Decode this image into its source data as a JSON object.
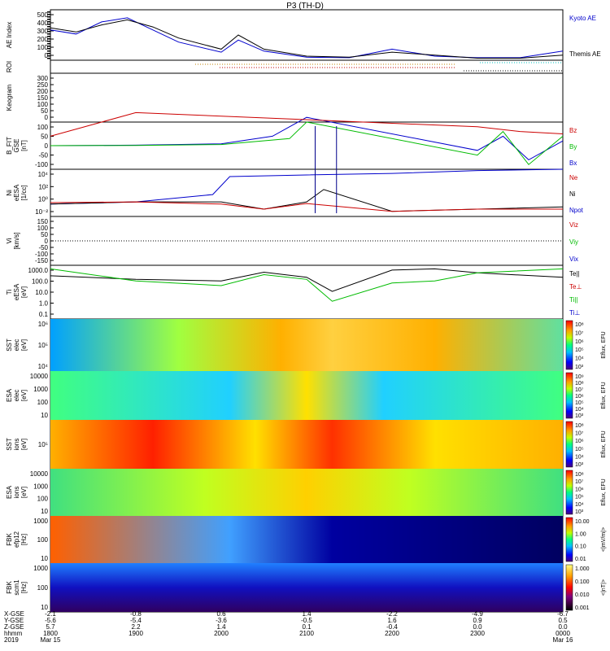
{
  "title": "P3 (TH-D)",
  "panels": [
    {
      "id": "ae",
      "ylabel": [
        "AE Index"
      ],
      "ticks": [
        "500",
        "400",
        "300",
        "200",
        "100",
        "0"
      ],
      "legend": [
        {
          "text": "Kyoto AE",
          "color": "#0000cc"
        },
        {
          "text": "Themis AE",
          "color": "#000000"
        }
      ]
    },
    {
      "id": "roi",
      "ylabel": [
        "ROI"
      ],
      "ticks": [],
      "legend": []
    },
    {
      "id": "keogram",
      "ylabel": [
        "Keogram"
      ],
      "ticks": [
        "300",
        "250",
        "200",
        "150",
        "100",
        "50",
        "0"
      ],
      "legend": []
    },
    {
      "id": "bfit",
      "ylabel": [
        "B_FIT",
        "GSE",
        "[nT]"
      ],
      "ticks": [
        "100",
        "50",
        "0",
        "-50",
        "-100"
      ],
      "legend": [
        {
          "text": "Bz",
          "color": "#cc0000"
        },
        {
          "text": "By",
          "color": "#00bb00"
        },
        {
          "text": "Bx",
          "color": "#0000cc"
        }
      ]
    },
    {
      "id": "ni",
      "ylabel": [
        "Ni",
        "eESA",
        "[1/cc]"
      ],
      "ticks": [
        "10⁴",
        "10²",
        "10⁰",
        "10⁻²"
      ],
      "legend": [
        {
          "text": "Ne",
          "color": "#cc0000"
        },
        {
          "text": "Ni",
          "color": "#000000"
        },
        {
          "text": "Npot",
          "color": "#0000cc"
        }
      ]
    },
    {
      "id": "vi",
      "ylabel": [
        "Vi",
        "[km/s]"
      ],
      "ticks": [
        "150",
        "100",
        "50",
        "0",
        "-50",
        "-100",
        "-150"
      ],
      "legend": [
        {
          "text": "Viz",
          "color": "#cc0000"
        },
        {
          "text": "Viy",
          "color": "#00bb00"
        },
        {
          "text": "Vix",
          "color": "#0000cc"
        }
      ]
    },
    {
      "id": "t",
      "ylabel": [
        "Ti",
        "eESA",
        "[eV]"
      ],
      "ticks": [
        "1000.0",
        "100.0",
        "10.0",
        "1.0",
        "0.1"
      ],
      "legend": [
        {
          "text": "Te||",
          "color": "#000000"
        },
        {
          "text": "Te⊥",
          "color": "#cc0000"
        },
        {
          "text": "Ti||",
          "color": "#00bb00"
        },
        {
          "text": "Ti⊥",
          "color": "#0000cc"
        }
      ]
    },
    {
      "id": "sst_e",
      "ylabel": [
        "SST",
        "elec",
        "[eV]"
      ],
      "ticks": [
        "10⁶",
        "10⁵",
        "10⁴"
      ],
      "cbar": {
        "labels": [
          "10⁸",
          "10⁷",
          "10⁶",
          "10⁵",
          "10⁴",
          "10³"
        ],
        "title": "Eflux, EFU"
      }
    },
    {
      "id": "esa_e",
      "ylabel": [
        "ESA",
        "elec",
        "[eV]"
      ],
      "ticks": [
        "10000",
        "1000",
        "100",
        "10"
      ],
      "cbar": {
        "labels": [
          "10⁹",
          "10⁸",
          "10⁷",
          "10⁶",
          "10⁵",
          "10⁴",
          "10³"
        ],
        "title": "Eflux, EFU"
      }
    },
    {
      "id": "sst_i",
      "ylabel": [
        "SST",
        "ions",
        "[eV]"
      ],
      "ticks": [
        "10⁵"
      ],
      "cbar": {
        "labels": [
          "10⁸",
          "10⁷",
          "10⁶",
          "10⁵",
          "10⁴",
          "10³"
        ],
        "title": "Eflux, EFU"
      }
    },
    {
      "id": "esa_i",
      "ylabel": [
        "ESA",
        "ions",
        "[eV]"
      ],
      "ticks": [
        "10000",
        "1000",
        "100",
        "10"
      ],
      "cbar": {
        "labels": [
          "10⁸",
          "10⁷",
          "10⁶",
          "10⁵",
          "10⁴",
          "10³"
        ],
        "title": "Eflux, EFU"
      }
    },
    {
      "id": "fbk_e",
      "ylabel": [
        "FBK",
        "efp12",
        "[Hz]"
      ],
      "ticks": [
        "1000",
        "100",
        "10"
      ],
      "cbar": {
        "labels": [
          "10.00",
          "1.00",
          "0.10",
          "0.01"
        ],
        "title": "<|mV/m|>"
      }
    },
    {
      "id": "fbk_b",
      "ylabel": [
        "FBK",
        "scm1",
        "[Hz]"
      ],
      "ticks": [
        "1000",
        "100",
        "10"
      ],
      "cbar": {
        "labels": [
          "1.000",
          "0.100",
          "0.010",
          "0.001"
        ],
        "title": "<|nT|>"
      }
    }
  ],
  "xaxis": {
    "row_labels": [
      "X-GSE",
      "Y-GSE",
      "Z-GSE",
      "hhmm",
      "2019"
    ],
    "columns": [
      {
        "vals": [
          "-2.1",
          "-5.6",
          "5.7",
          "1800",
          "Mar 15"
        ]
      },
      {
        "vals": [
          "-0.8",
          "-5.4",
          "2.2",
          "1900",
          ""
        ]
      },
      {
        "vals": [
          "0.6",
          "-3.6",
          "1.4",
          "2000",
          ""
        ]
      },
      {
        "vals": [
          "1.4",
          "-0.5",
          "0.1",
          "2100",
          ""
        ]
      },
      {
        "vals": [
          "-2.2",
          "1.6",
          "-0.4",
          "2200",
          ""
        ]
      },
      {
        "vals": [
          "-4.9",
          "0.9",
          "0.0",
          "2300",
          ""
        ]
      },
      {
        "vals": [
          "-6.7",
          "0.5",
          "0.0",
          "0000",
          "Mar 16"
        ]
      }
    ]
  },
  "chart_data": {
    "type": "line",
    "time_range": [
      "2019-03-15 18:00",
      "2019-03-16 00:00"
    ],
    "panels": [
      {
        "name": "AE Index",
        "series": [
          {
            "name": "Kyoto AE",
            "color": "#0000cc",
            "x": [
              18.0,
              18.3,
              18.6,
              18.9,
              19.2,
              19.5,
              20.0,
              20.2,
              20.5,
              21.0,
              21.5,
              22.0,
              22.5,
              23.0,
              23.5,
              24.0
            ],
            "y": [
              300,
              260,
              380,
              420,
              300,
              180,
              80,
              200,
              90,
              30,
              25,
              110,
              40,
              25,
              25,
              90
            ]
          },
          {
            "name": "Themis AE",
            "color": "#000000",
            "x": [
              18.0,
              18.3,
              18.6,
              18.9,
              19.2,
              19.5,
              20.0,
              20.2,
              20.5,
              21.0,
              21.5,
              22.0,
              22.5,
              23.0,
              23.5,
              24.0
            ],
            "y": [
              320,
              280,
              350,
              400,
              330,
              220,
              110,
              250,
              110,
              40,
              30,
              80,
              50,
              20,
              20,
              50
            ]
          }
        ],
        "ylim": [
          0,
          500
        ]
      },
      {
        "name": "B_FIT GSE",
        "series": [
          {
            "name": "Bx",
            "color": "#0000cc",
            "x": [
              18.0,
              19.0,
              20.0,
              20.6,
              21.0,
              23.0,
              23.3,
              23.6,
              24.0
            ],
            "y": [
              0,
              2,
              8,
              40,
              120,
              -20,
              40,
              -60,
              20
            ]
          },
          {
            "name": "By",
            "color": "#00bb00",
            "x": [
              18.0,
              19.0,
              20.0,
              20.8,
              21.0,
              23.0,
              23.3,
              23.6,
              24.0
            ],
            "y": [
              0,
              1,
              5,
              30,
              100,
              -40,
              60,
              -80,
              40
            ]
          },
          {
            "name": "Bz",
            "color": "#cc0000",
            "x": [
              18.0,
              18.6,
              19.0,
              23.0,
              23.5,
              24.0
            ],
            "y": [
              40,
              100,
              140,
              80,
              60,
              50
            ]
          }
        ],
        "ylim": [
          -100,
          100
        ]
      },
      {
        "name": "Ni eESA",
        "series": [
          {
            "name": "Npot",
            "color": "#0000cc",
            "x": [
              18.0,
              19.0,
              19.9,
              20.1,
              21.0,
              22.0,
              23.0,
              24.0
            ],
            "y": [
              0.5,
              1,
              10,
              3000,
              5000,
              8000,
              20000,
              30000
            ]
          },
          {
            "name": "Ni",
            "color": "#000000",
            "x": [
              18.0,
              19.0,
              20.0,
              20.5,
              21.0,
              21.2,
              22.0,
              23.0,
              24.0
            ],
            "y": [
              0.5,
              1,
              1,
              0.1,
              1,
              50,
              0.05,
              0.1,
              0.2
            ]
          },
          {
            "name": "Ne",
            "color": "#cc0000",
            "x": [
              18.0,
              19.0,
              20.0,
              20.5,
              21.0,
              22.0,
              23.0,
              24.0
            ],
            "y": [
              0.8,
              1,
              0.5,
              0.1,
              0.6,
              0.05,
              0.1,
              0.1
            ]
          }
        ],
        "ylim": [
          0.01,
          30000
        ],
        "yscale": "log"
      },
      {
        "name": "T eESA",
        "series": [
          {
            "name": "Te||",
            "color": "#000000",
            "x": [
              18.0,
              19.0,
              20.0,
              20.5,
              21.0,
              21.3,
              22.0,
              22.5,
              23.0,
              24.0
            ],
            "y": [
              400,
              200,
              150,
              800,
              300,
              20,
              1200,
              1500,
              700,
              300
            ]
          },
          {
            "name": "Ti||",
            "color": "#00bb00",
            "x": [
              18.0,
              19.0,
              20.0,
              20.5,
              21.0,
              21.3,
              22.0,
              22.5,
              23.0,
              24.0
            ],
            "y": [
              1500,
              150,
              60,
              500,
              200,
              3,
              100,
              150,
              700,
              1500
            ]
          }
        ],
        "ylim": [
          0.1,
          3000
        ],
        "yscale": "log"
      }
    ]
  }
}
